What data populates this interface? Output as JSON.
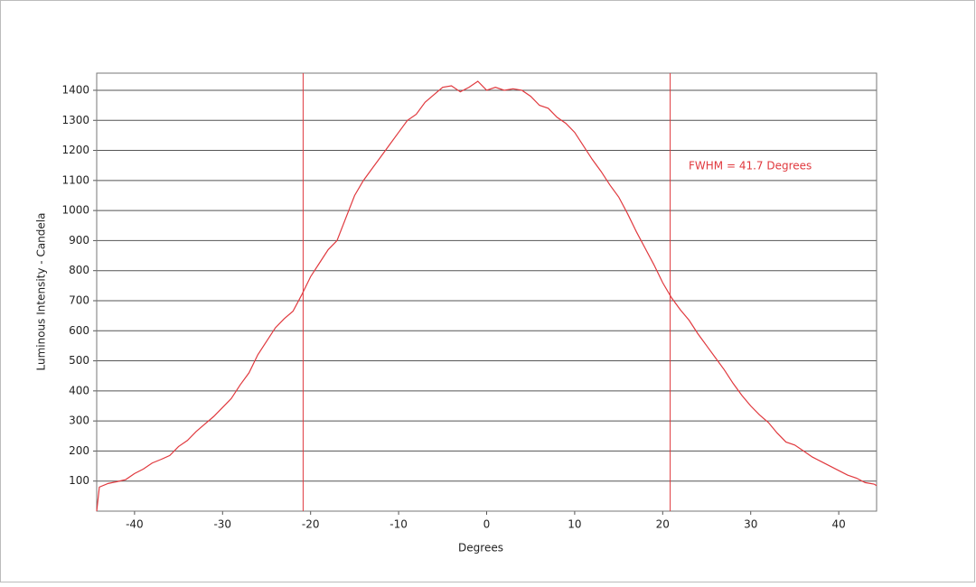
{
  "chart_data": {
    "type": "line",
    "x_label": "Degrees",
    "y_label": "Luminous Intensity - Candela",
    "annotation": "FWHM = 41.7 Degrees",
    "xlim": [
      -44.3,
      44.3
    ],
    "ylim": [
      0,
      1457
    ],
    "xticks": [
      -40,
      -30,
      -20,
      -10,
      0,
      10,
      20,
      30,
      40
    ],
    "yticks": [
      100,
      200,
      300,
      400,
      500,
      600,
      700,
      800,
      900,
      1000,
      1100,
      1200,
      1300,
      1400
    ],
    "grid": true,
    "vlines": [
      -20.85,
      20.85
    ],
    "x": [
      -44.3,
      -44,
      -43,
      -42,
      -41,
      -40,
      -39,
      -38,
      -37,
      -36,
      -35,
      -34,
      -33,
      -32,
      -31,
      -30,
      -29,
      -28,
      -27,
      -26,
      -25,
      -24,
      -23,
      -22,
      -21,
      -20,
      -19,
      -18,
      -17,
      -16,
      -15,
      -14,
      -13,
      -12,
      -11,
      -10,
      -9,
      -8,
      -7,
      -6,
      -5,
      -4,
      -3,
      -2,
      -1,
      0,
      1,
      2,
      3,
      4,
      5,
      6,
      7,
      8,
      9,
      10,
      11,
      12,
      13,
      14,
      15,
      16,
      17,
      18,
      19,
      20,
      21,
      22,
      23,
      24,
      25,
      26,
      27,
      28,
      29,
      30,
      31,
      32,
      33,
      34,
      35,
      36,
      37,
      38,
      39,
      40,
      41,
      42,
      43,
      44,
      44.3
    ],
    "series": [
      {
        "color": "#e0393e",
        "values": [
          0,
          80,
          92,
          98,
          105,
          125,
          140,
          160,
          172,
          185,
          215,
          235,
          265,
          290,
          315,
          345,
          375,
          420,
          460,
          520,
          565,
          610,
          640,
          665,
          720,
          780,
          825,
          870,
          900,
          975,
          1050,
          1100,
          1140,
          1180,
          1220,
          1260,
          1300,
          1320,
          1360,
          1385,
          1410,
          1415,
          1395,
          1410,
          1430,
          1400,
          1410,
          1400,
          1405,
          1400,
          1380,
          1350,
          1340,
          1310,
          1290,
          1260,
          1215,
          1170,
          1130,
          1085,
          1045,
          990,
          930,
          875,
          820,
          760,
          710,
          670,
          635,
          590,
          550,
          510,
          470,
          425,
          385,
          350,
          320,
          295,
          260,
          230,
          220,
          200,
          180,
          165,
          150,
          135,
          120,
          110,
          95,
          90,
          85
        ]
      }
    ]
  }
}
